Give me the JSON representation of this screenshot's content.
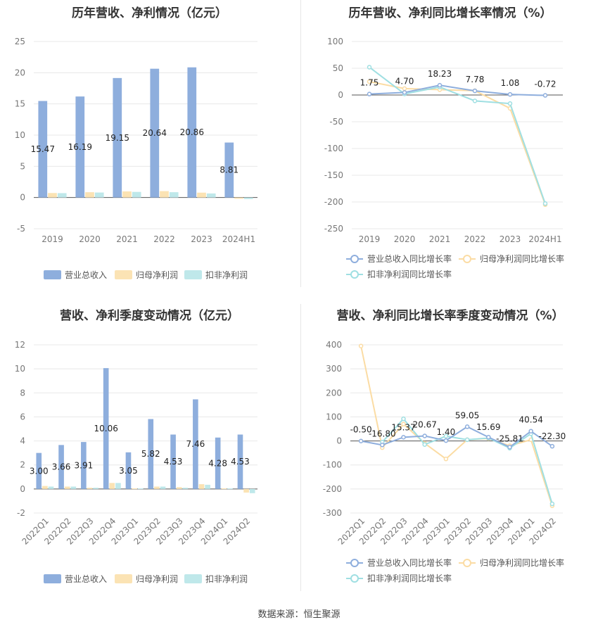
{
  "footer": "数据来源：恒生聚源",
  "colors": {
    "revenue": "#8eaedd",
    "net": "#fbe3b4",
    "deducted": "#bfe8ea",
    "line_revenue": "#8eaedd",
    "line_net": "#fbdca4",
    "line_deducted": "#9fdfe2"
  },
  "chart_data": [
    {
      "type": "bar",
      "title": "历年营收、净利情况（亿元）",
      "categories": [
        "2019",
        "2020",
        "2021",
        "2022",
        "2023",
        "2024H1"
      ],
      "ylim": [
        -5,
        25
      ],
      "yticks": [
        -5,
        0,
        5,
        10,
        15,
        20,
        25
      ],
      "series": [
        {
          "name": "营业总收入",
          "values": [
            15.47,
            16.19,
            19.15,
            20.64,
            20.86,
            8.81
          ],
          "labels": [
            "15.47",
            "16.19",
            "19.15",
            "20.64",
            "20.86",
            "8.81"
          ]
        },
        {
          "name": "归母净利润",
          "values": [
            0.72,
            0.85,
            0.98,
            1.03,
            0.78,
            -0.2
          ]
        },
        {
          "name": "扣非净利润",
          "values": [
            0.7,
            0.8,
            0.9,
            0.85,
            0.65,
            -0.25
          ]
        }
      ],
      "legend": "bottom"
    },
    {
      "type": "line",
      "title": "历年营收、净利同比增长率情况（%）",
      "categories": [
        "2019",
        "2020",
        "2021",
        "2022",
        "2023",
        "2024H1"
      ],
      "ylim": [
        -250,
        100
      ],
      "yticks": [
        -250,
        -200,
        -150,
        -100,
        -50,
        0,
        50,
        100
      ],
      "series": [
        {
          "name": "营业总收入同比增长率",
          "values": [
            1.75,
            4.7,
            18.23,
            7.78,
            1.08,
            -0.72
          ],
          "labels": [
            "1.75",
            "4.70",
            "18.23",
            "7.78",
            "1.08",
            "-0.72"
          ]
        },
        {
          "name": "归母净利润同比增长率",
          "values": [
            25,
            12,
            10,
            8,
            -25,
            -205
          ]
        },
        {
          "name": "扣非净利润同比增长率",
          "values": [
            52,
            2,
            15,
            -11,
            -16,
            -203
          ]
        }
      ],
      "legend": "bottom"
    },
    {
      "type": "bar",
      "title": "营收、净利季度变动情况（亿元）",
      "categories": [
        "2022Q1",
        "2022Q2",
        "2022Q3",
        "2022Q4",
        "2023Q1",
        "2023Q2",
        "2023Q3",
        "2023Q4",
        "2024Q1",
        "2024Q2"
      ],
      "ylim": [
        -2,
        12
      ],
      "yticks": [
        -2,
        0,
        2,
        4,
        6,
        8,
        10,
        12
      ],
      "series": [
        {
          "name": "营业总收入",
          "values": [
            3.0,
            3.66,
            3.91,
            10.06,
            3.05,
            5.82,
            4.53,
            7.46,
            4.28,
            4.53
          ],
          "labels": [
            "3.00",
            "3.66",
            "3.91",
            "10.06",
            "3.05",
            "5.82",
            "4.53",
            "7.46",
            "4.28",
            "4.53"
          ]
        },
        {
          "name": "归母净利润",
          "values": [
            0.25,
            0.2,
            0.1,
            0.5,
            0.05,
            0.2,
            0.15,
            0.4,
            0.05,
            -0.3
          ]
        },
        {
          "name": "扣非净利润",
          "values": [
            0.2,
            0.2,
            0.1,
            0.5,
            0.05,
            0.2,
            0.1,
            0.35,
            0.05,
            -0.35
          ]
        }
      ],
      "legend": "bottom"
    },
    {
      "type": "line",
      "title": "营收、净利同比增长率季度变动情况（%）",
      "categories": [
        "2022Q1",
        "2022Q2",
        "2022Q3",
        "2022Q4",
        "2023Q1",
        "2023Q2",
        "2023Q3",
        "2023Q4",
        "2024Q1",
        "2024Q2"
      ],
      "ylim": [
        -300,
        400
      ],
      "yticks": [
        -300,
        -200,
        -100,
        0,
        100,
        200,
        300,
        400
      ],
      "series": [
        {
          "name": "营业总收入同比增长率",
          "values": [
            -0.5,
            -16.8,
            15.37,
            20.67,
            1.4,
            59.05,
            15.69,
            -25.81,
            40.54,
            -22.3
          ],
          "labels": [
            "-0.50",
            "-16.80",
            "15.37",
            "20.67",
            "1.40",
            "59.05",
            "15.69",
            "-25.81",
            "40.54",
            "-22.30"
          ]
        },
        {
          "name": "归母净利润同比增长率",
          "values": [
            395,
            -28,
            70,
            -10,
            -75,
            5,
            10,
            -20,
            5,
            -270
          ]
        },
        {
          "name": "扣非净利润同比增长率",
          "values": [
            null,
            -5,
            92,
            -15,
            20,
            5,
            12,
            -30,
            30,
            -262
          ]
        }
      ],
      "legend": "bottom"
    }
  ]
}
